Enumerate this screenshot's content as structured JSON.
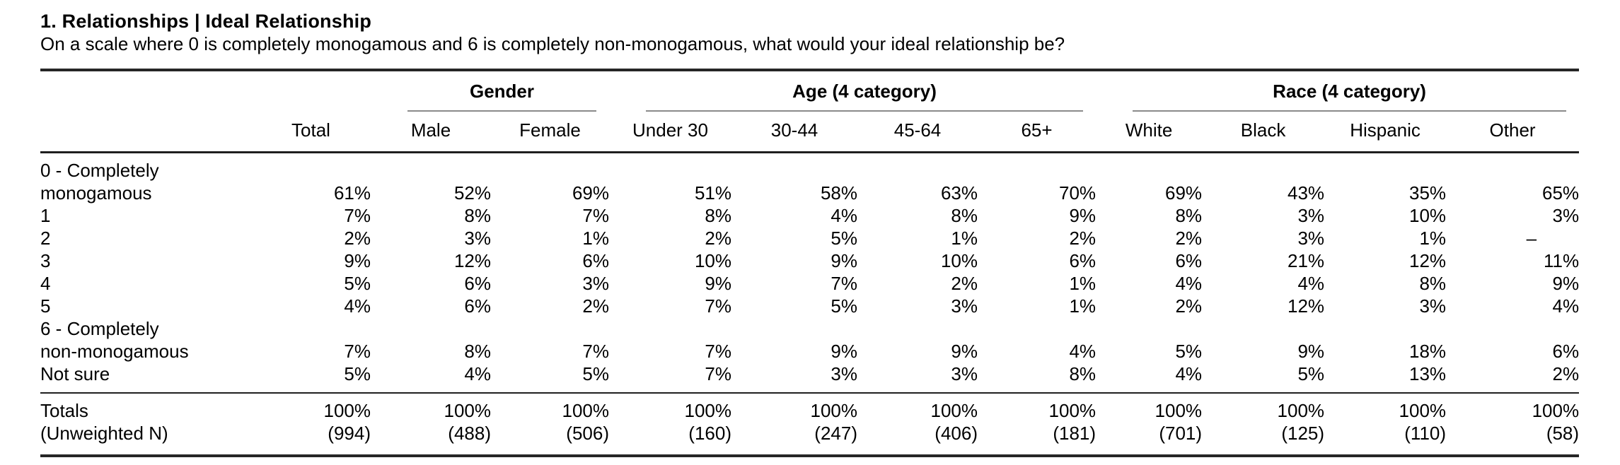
{
  "header": {
    "title": "1. Relationships | Ideal Relationship",
    "question": "On a scale where 0 is completely monogamous and 6 is completely non-monogamous, what would your ideal relationship be?"
  },
  "table": {
    "groups": [
      {
        "label": "Gender",
        "span": 2
      },
      {
        "label": "Age (4 category)",
        "span": 4
      },
      {
        "label": "Race (4 category)",
        "span": 4
      }
    ],
    "columns": [
      "Total",
      "Male",
      "Female",
      "Under 30",
      "30-44",
      "45-64",
      "65+",
      "White",
      "Black",
      "Hispanic",
      "Other"
    ],
    "rows": [
      {
        "label": "0 - Completely\nmonogamous",
        "values": [
          "61%",
          "52%",
          "69%",
          "51%",
          "58%",
          "63%",
          "70%",
          "69%",
          "43%",
          "35%",
          "65%"
        ]
      },
      {
        "label": "1",
        "values": [
          "7%",
          "8%",
          "7%",
          "8%",
          "4%",
          "8%",
          "9%",
          "8%",
          "3%",
          "10%",
          "3%"
        ]
      },
      {
        "label": "2",
        "values": [
          "2%",
          "3%",
          "1%",
          "2%",
          "5%",
          "1%",
          "2%",
          "2%",
          "3%",
          "1%",
          "–"
        ]
      },
      {
        "label": "3",
        "values": [
          "9%",
          "12%",
          "6%",
          "10%",
          "9%",
          "10%",
          "6%",
          "6%",
          "21%",
          "12%",
          "11%"
        ]
      },
      {
        "label": "4",
        "values": [
          "5%",
          "6%",
          "3%",
          "9%",
          "7%",
          "2%",
          "1%",
          "4%",
          "4%",
          "8%",
          "9%"
        ]
      },
      {
        "label": "5",
        "values": [
          "4%",
          "6%",
          "2%",
          "7%",
          "5%",
          "3%",
          "1%",
          "2%",
          "12%",
          "3%",
          "4%"
        ]
      },
      {
        "label": "6 - Completely\nnon-monogamous",
        "values": [
          "7%",
          "8%",
          "7%",
          "7%",
          "9%",
          "9%",
          "4%",
          "5%",
          "9%",
          "18%",
          "6%"
        ]
      },
      {
        "label": "Not sure",
        "values": [
          "5%",
          "4%",
          "5%",
          "7%",
          "3%",
          "3%",
          "8%",
          "4%",
          "5%",
          "13%",
          "2%"
        ]
      }
    ],
    "totals": {
      "label": "Totals",
      "values": [
        "100%",
        "100%",
        "100%",
        "100%",
        "100%",
        "100%",
        "100%",
        "100%",
        "100%",
        "100%",
        "100%"
      ]
    },
    "unweighted": {
      "label": "(Unweighted N)",
      "values": [
        "(994)",
        "(488)",
        "(506)",
        "(160)",
        "(247)",
        "(406)",
        "(181)",
        "(701)",
        "(125)",
        "(110)",
        "(58)"
      ]
    }
  }
}
